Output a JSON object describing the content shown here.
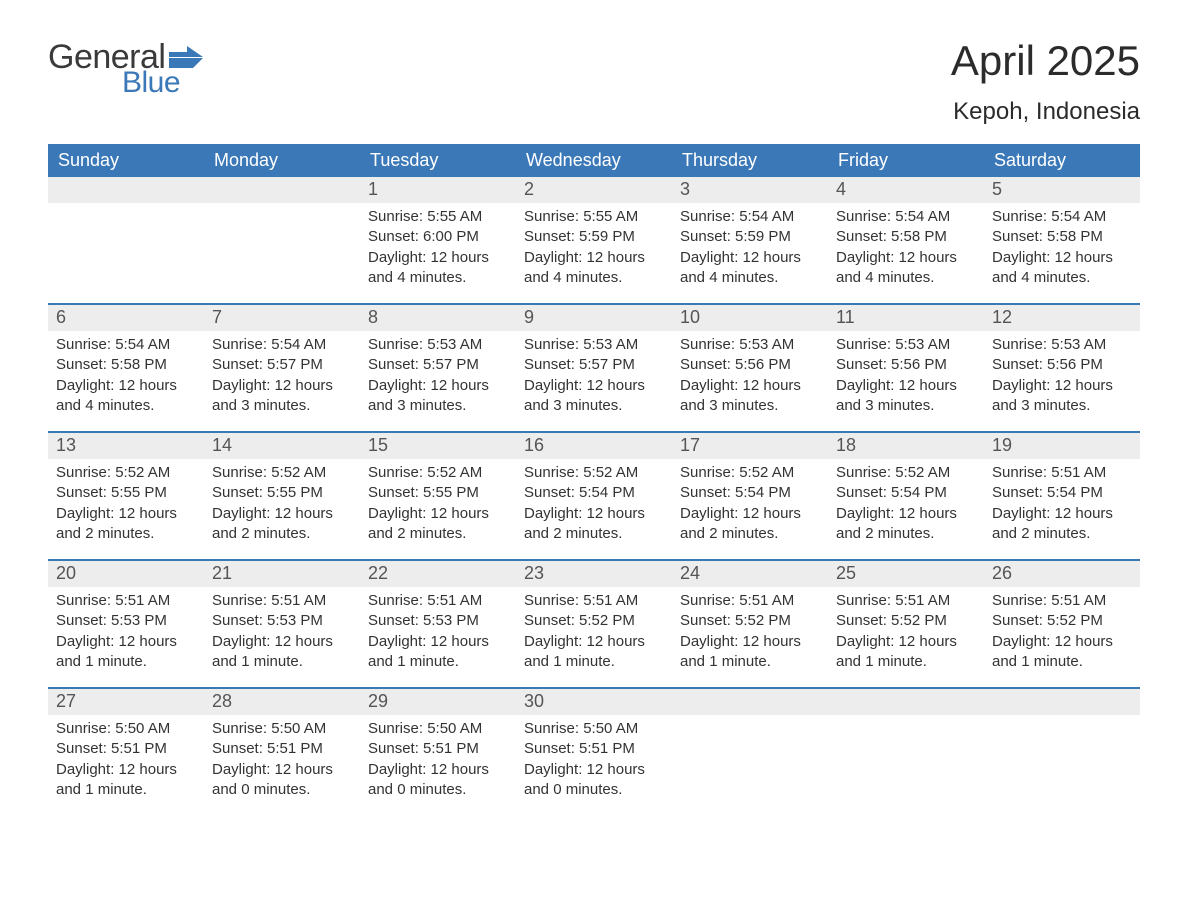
{
  "brand": {
    "word1": "General",
    "word2": "Blue",
    "text_color": "#3a3a3a",
    "accent_color": "#3b78b8",
    "flag_color": "#3b78b8"
  },
  "title": "April 2025",
  "location": "Kepoh, Indonesia",
  "table": {
    "header_bg": "#3b78b8",
    "header_fg": "#ffffff",
    "daybar_bg": "#ededed",
    "text_color": "#333333",
    "separator_color": "#3b78b8",
    "columns": [
      "Sunday",
      "Monday",
      "Tuesday",
      "Wednesday",
      "Thursday",
      "Friday",
      "Saturday"
    ],
    "weeks": [
      [
        null,
        null,
        {
          "n": "1",
          "sunrise": "5:55 AM",
          "sunset": "6:00 PM",
          "daylight": "12 hours and 4 minutes."
        },
        {
          "n": "2",
          "sunrise": "5:55 AM",
          "sunset": "5:59 PM",
          "daylight": "12 hours and 4 minutes."
        },
        {
          "n": "3",
          "sunrise": "5:54 AM",
          "sunset": "5:59 PM",
          "daylight": "12 hours and 4 minutes."
        },
        {
          "n": "4",
          "sunrise": "5:54 AM",
          "sunset": "5:58 PM",
          "daylight": "12 hours and 4 minutes."
        },
        {
          "n": "5",
          "sunrise": "5:54 AM",
          "sunset": "5:58 PM",
          "daylight": "12 hours and 4 minutes."
        }
      ],
      [
        {
          "n": "6",
          "sunrise": "5:54 AM",
          "sunset": "5:58 PM",
          "daylight": "12 hours and 4 minutes."
        },
        {
          "n": "7",
          "sunrise": "5:54 AM",
          "sunset": "5:57 PM",
          "daylight": "12 hours and 3 minutes."
        },
        {
          "n": "8",
          "sunrise": "5:53 AM",
          "sunset": "5:57 PM",
          "daylight": "12 hours and 3 minutes."
        },
        {
          "n": "9",
          "sunrise": "5:53 AM",
          "sunset": "5:57 PM",
          "daylight": "12 hours and 3 minutes."
        },
        {
          "n": "10",
          "sunrise": "5:53 AM",
          "sunset": "5:56 PM",
          "daylight": "12 hours and 3 minutes."
        },
        {
          "n": "11",
          "sunrise": "5:53 AM",
          "sunset": "5:56 PM",
          "daylight": "12 hours and 3 minutes."
        },
        {
          "n": "12",
          "sunrise": "5:53 AM",
          "sunset": "5:56 PM",
          "daylight": "12 hours and 3 minutes."
        }
      ],
      [
        {
          "n": "13",
          "sunrise": "5:52 AM",
          "sunset": "5:55 PM",
          "daylight": "12 hours and 2 minutes."
        },
        {
          "n": "14",
          "sunrise": "5:52 AM",
          "sunset": "5:55 PM",
          "daylight": "12 hours and 2 minutes."
        },
        {
          "n": "15",
          "sunrise": "5:52 AM",
          "sunset": "5:55 PM",
          "daylight": "12 hours and 2 minutes."
        },
        {
          "n": "16",
          "sunrise": "5:52 AM",
          "sunset": "5:54 PM",
          "daylight": "12 hours and 2 minutes."
        },
        {
          "n": "17",
          "sunrise": "5:52 AM",
          "sunset": "5:54 PM",
          "daylight": "12 hours and 2 minutes."
        },
        {
          "n": "18",
          "sunrise": "5:52 AM",
          "sunset": "5:54 PM",
          "daylight": "12 hours and 2 minutes."
        },
        {
          "n": "19",
          "sunrise": "5:51 AM",
          "sunset": "5:54 PM",
          "daylight": "12 hours and 2 minutes."
        }
      ],
      [
        {
          "n": "20",
          "sunrise": "5:51 AM",
          "sunset": "5:53 PM",
          "daylight": "12 hours and 1 minute."
        },
        {
          "n": "21",
          "sunrise": "5:51 AM",
          "sunset": "5:53 PM",
          "daylight": "12 hours and 1 minute."
        },
        {
          "n": "22",
          "sunrise": "5:51 AM",
          "sunset": "5:53 PM",
          "daylight": "12 hours and 1 minute."
        },
        {
          "n": "23",
          "sunrise": "5:51 AM",
          "sunset": "5:52 PM",
          "daylight": "12 hours and 1 minute."
        },
        {
          "n": "24",
          "sunrise": "5:51 AM",
          "sunset": "5:52 PM",
          "daylight": "12 hours and 1 minute."
        },
        {
          "n": "25",
          "sunrise": "5:51 AM",
          "sunset": "5:52 PM",
          "daylight": "12 hours and 1 minute."
        },
        {
          "n": "26",
          "sunrise": "5:51 AM",
          "sunset": "5:52 PM",
          "daylight": "12 hours and 1 minute."
        }
      ],
      [
        {
          "n": "27",
          "sunrise": "5:50 AM",
          "sunset": "5:51 PM",
          "daylight": "12 hours and 1 minute."
        },
        {
          "n": "28",
          "sunrise": "5:50 AM",
          "sunset": "5:51 PM",
          "daylight": "12 hours and 0 minutes."
        },
        {
          "n": "29",
          "sunrise": "5:50 AM",
          "sunset": "5:51 PM",
          "daylight": "12 hours and 0 minutes."
        },
        {
          "n": "30",
          "sunrise": "5:50 AM",
          "sunset": "5:51 PM",
          "daylight": "12 hours and 0 minutes."
        },
        null,
        null,
        null
      ]
    ],
    "labels": {
      "sunrise": "Sunrise:",
      "sunset": "Sunset:",
      "daylight": "Daylight:"
    }
  }
}
